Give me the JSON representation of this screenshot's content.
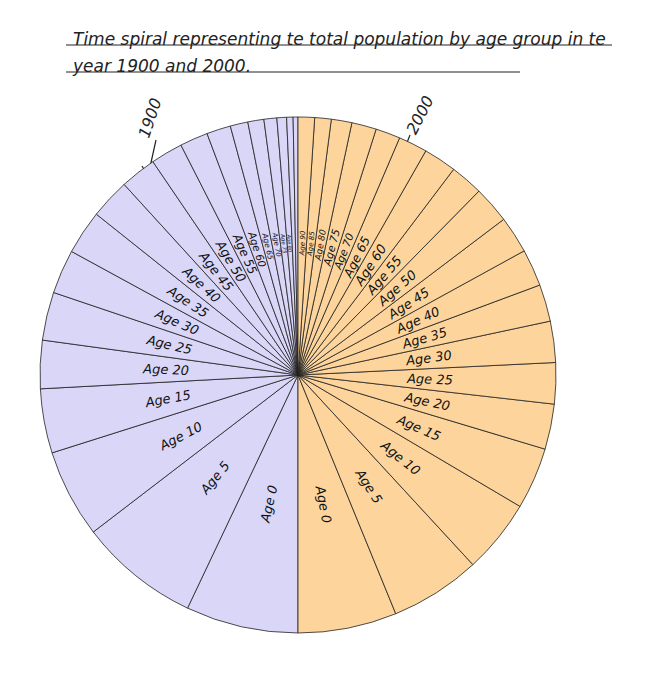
{
  "chart_data": {
    "type": "pie",
    "title": "Time spiral representing te total population by age group in te year 1900 and 2000.",
    "categories": [
      "Age 0",
      "Age 5",
      "Age 10",
      "Age 15",
      "Age 20",
      "Age 25",
      "Age 30",
      "Age 35",
      "Age 40",
      "Age 45",
      "Age 50",
      "Age 55",
      "Age 60",
      "Age 65",
      "Age 70",
      "Age 75",
      "Age 80",
      "Age 85",
      "Age 90"
    ],
    "series": [
      {
        "name": "1900",
        "color": "#d9d6f8",
        "values": [
          14,
          15,
          11,
          8,
          6,
          6,
          5.5,
          5.5,
          5,
          4.5,
          4,
          3.5,
          3,
          2.2,
          2,
          1.6,
          1.2,
          0.8,
          0.6
        ]
      },
      {
        "name": "2000",
        "color": "#fdd59c",
        "values": [
          12,
          11,
          9,
          7.5,
          5.5,
          5,
          5,
          4.5,
          4.5,
          4.5,
          4.5,
          4,
          4,
          3.5,
          3,
          3,
          2.5,
          2,
          2
        ]
      }
    ],
    "data_labels": true
  }
}
